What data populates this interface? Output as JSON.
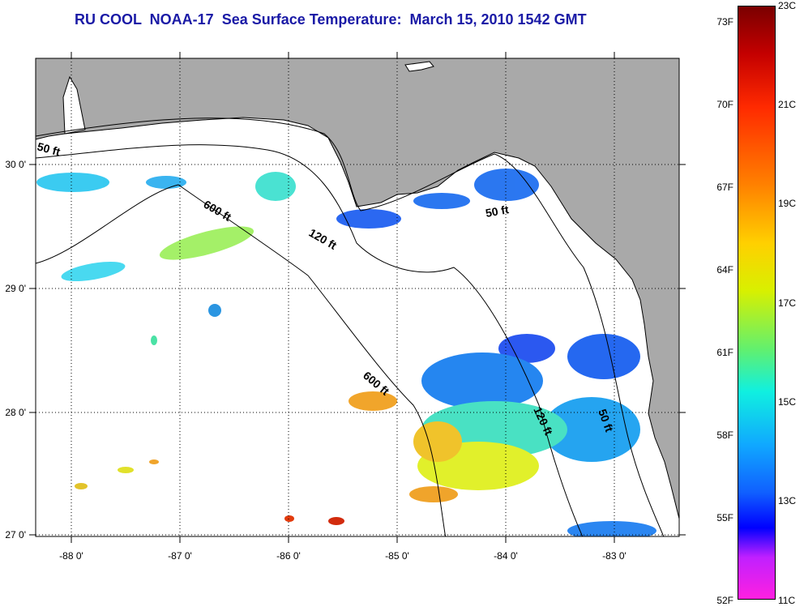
{
  "title": "RU COOL  NOAA-17  Sea Surface Temperature:  March 15, 2010 1542 GMT",
  "map": {
    "lon_labels": [
      "-88 0'",
      "-87 0'",
      "-86 0'",
      "-85 0'",
      "-84 0'",
      "-83 0'"
    ],
    "lat_labels": [
      "30 0'",
      "29 0'",
      "28 0'",
      "27 0'"
    ],
    "contour_labels": [
      {
        "text": "50 ft",
        "depth": "50 ft"
      },
      {
        "text": "600 ft",
        "depth": "600 ft"
      },
      {
        "text": "120 ft",
        "depth": "120 ft"
      },
      {
        "text": "50 ft",
        "depth": "50 ft"
      },
      {
        "text": "600 ft",
        "depth": "600 ft"
      },
      {
        "text": "120 ft",
        "depth": "120 ft"
      },
      {
        "text": "50 ft",
        "depth": "50 ft"
      }
    ],
    "land_color": "#a9a9a9",
    "water_color": "#ffffff"
  },
  "colorbar": {
    "fahrenheit_labels": [
      "73F",
      "70F",
      "67F",
      "64F",
      "61F",
      "58F",
      "55F",
      "52F"
    ],
    "celsius_labels": [
      "23C",
      "21C",
      "19C",
      "17C",
      "15C",
      "13C",
      "11C"
    ],
    "min_c": 11,
    "max_c": 23
  }
}
